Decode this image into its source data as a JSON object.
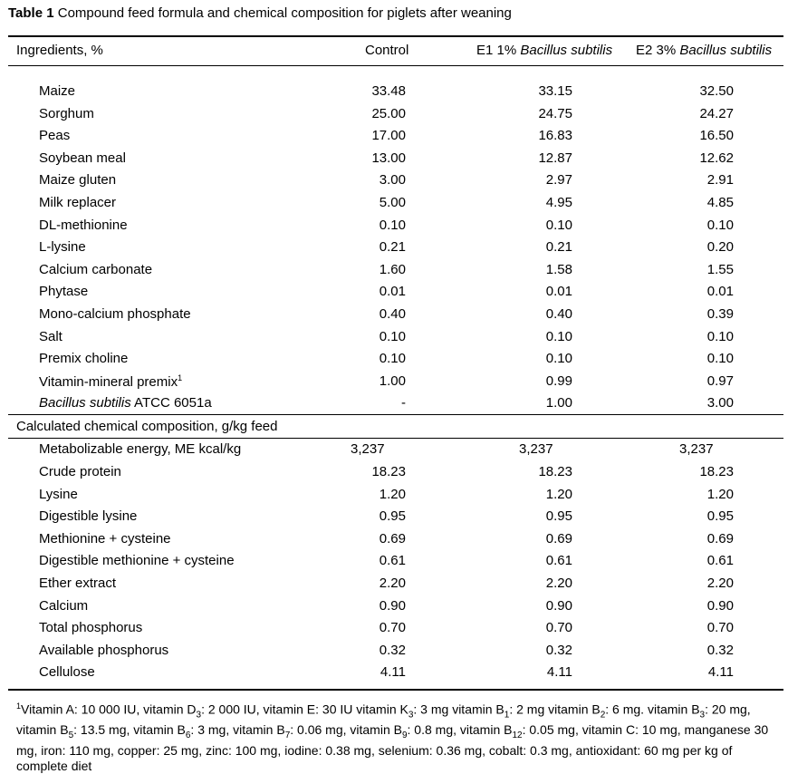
{
  "caption": {
    "label": "Table 1",
    "text": "Compound feed formula and chemical composition for piglets after weaning"
  },
  "header": {
    "col0": "Ingredients, %",
    "col1": "Control",
    "col2_prefix": "E1 1% ",
    "col2_italic": "Bacillus subtilis",
    "col3_prefix": "E2 3% ",
    "col3_italic": "Bacillus subtilis"
  },
  "ingredients": [
    {
      "name": "Maize",
      "control": "33.48",
      "e1": "33.15",
      "e2": "32.50"
    },
    {
      "name": "Sorghum",
      "control": "25.00",
      "e1": "24.75",
      "e2": "24.27"
    },
    {
      "name": "Peas",
      "control": "17.00",
      "e1": "16.83",
      "e2": "16.50"
    },
    {
      "name": "Soybean meal",
      "control": "13.00",
      "e1": "12.87",
      "e2": "12.62"
    },
    {
      "name": "Maize gluten",
      "control": "3.00",
      "e1": "2.97",
      "e2": "2.91"
    },
    {
      "name": "Milk replacer",
      "control": "5.00",
      "e1": "4.95",
      "e2": "4.85"
    },
    {
      "name": "DL-methionine",
      "control": "0.10",
      "e1": "0.10",
      "e2": "0.10"
    },
    {
      "name": "L-lysine",
      "control": "0.21",
      "e1": "0.21",
      "e2": "0.20"
    },
    {
      "name": "Calcium carbonate",
      "control": "1.60",
      "e1": "1.58",
      "e2": "1.55"
    },
    {
      "name": "Phytase",
      "control": "0.01",
      "e1": "0.01",
      "e2": "0.01"
    },
    {
      "name": "Mono-calcium phosphate",
      "control": "0.40",
      "e1": "0.40",
      "e2": "0.39"
    },
    {
      "name": "Salt",
      "control": "0.10",
      "e1": "0.10",
      "e2": "0.10"
    },
    {
      "name": "Premix choline",
      "control": "0.10",
      "e1": "0.10",
      "e2": "0.10"
    },
    {
      "name": "Vitamin-mineral premix",
      "sup": "1",
      "control": "1.00",
      "e1": "0.99",
      "e2": "0.97"
    },
    {
      "name_italic": "Bacillus subtilis",
      "name_rest": " ATCC 6051a",
      "control": "-",
      "e1": "1.00",
      "e2": "3.00"
    }
  ],
  "section2": {
    "title": "Calculated chemical composition, g/kg feed"
  },
  "me_row": {
    "name": "Metabolizable energy, ME kcal/kg",
    "control": "3,237",
    "e1": "3,237",
    "e2": "3,237"
  },
  "composition": [
    {
      "name": "Crude protein",
      "control": "18.23",
      "e1": "18.23",
      "e2": "18.23"
    },
    {
      "name": "Lysine",
      "control": "1.20",
      "e1": "1.20",
      "e2": "1.20"
    },
    {
      "name": "Digestible lysine",
      "control": "0.95",
      "e1": "0.95",
      "e2": "0.95"
    },
    {
      "name": "Methionine + cysteine",
      "control": "0.69",
      "e1": "0.69",
      "e2": "0.69"
    },
    {
      "name": "Digestible methionine + cysteine",
      "control": "0.61",
      "e1": "0.61",
      "e2": "0.61"
    },
    {
      "name": "Ether extract",
      "control": "2.20",
      "e1": "2.20",
      "e2": "2.20"
    },
    {
      "name": "Calcium",
      "control": "0.90",
      "e1": "0.90",
      "e2": "0.90"
    },
    {
      "name": "Total phosphorus",
      "control": "0.70",
      "e1": "0.70",
      "e2": "0.70"
    },
    {
      "name": "Available phosphorus",
      "control": "0.32",
      "e1": "0.32",
      "e2": "0.32"
    },
    {
      "name": "Cellulose",
      "control": "4.11",
      "e1": "4.11",
      "e2": "4.11"
    }
  ],
  "footnote": {
    "marker": "1",
    "parts": [
      {
        "t": "Vitamin A: 10 000 IU, vitamin D"
      },
      {
        "sub": "3"
      },
      {
        "t": ": 2 000 IU, vitamin E: 30 IU vitamin K"
      },
      {
        "sub": "3"
      },
      {
        "t": ": 3 mg vitamin B"
      },
      {
        "sub": "1"
      },
      {
        "t": ": 2 mg vitamin B"
      },
      {
        "sub": "2"
      },
      {
        "t": ": 6 mg. vitamin B"
      },
      {
        "sub": "3"
      },
      {
        "t": ": 20 mg, vitamin B"
      },
      {
        "sub": "5"
      },
      {
        "t": ": 13.5 mg, vitamin B"
      },
      {
        "sub": "6"
      },
      {
        "t": ": 3 mg, vitamin B"
      },
      {
        "sub": "7"
      },
      {
        "t": ": 0.06 mg, vitamin B"
      },
      {
        "sub": "9"
      },
      {
        "t": ": 0.8 mg, vitamin B"
      },
      {
        "sub": "12"
      },
      {
        "t": ": 0.05 mg, vitamin C: 10 mg, manganese 30 mg, iron: 110 mg, copper: 25 mg, zinc: 100 mg, iodine: 0.38 mg, selenium: 0.36 mg, cobalt: 0.3 mg, antioxidant: 60 mg per kg of complete diet"
      }
    ]
  }
}
